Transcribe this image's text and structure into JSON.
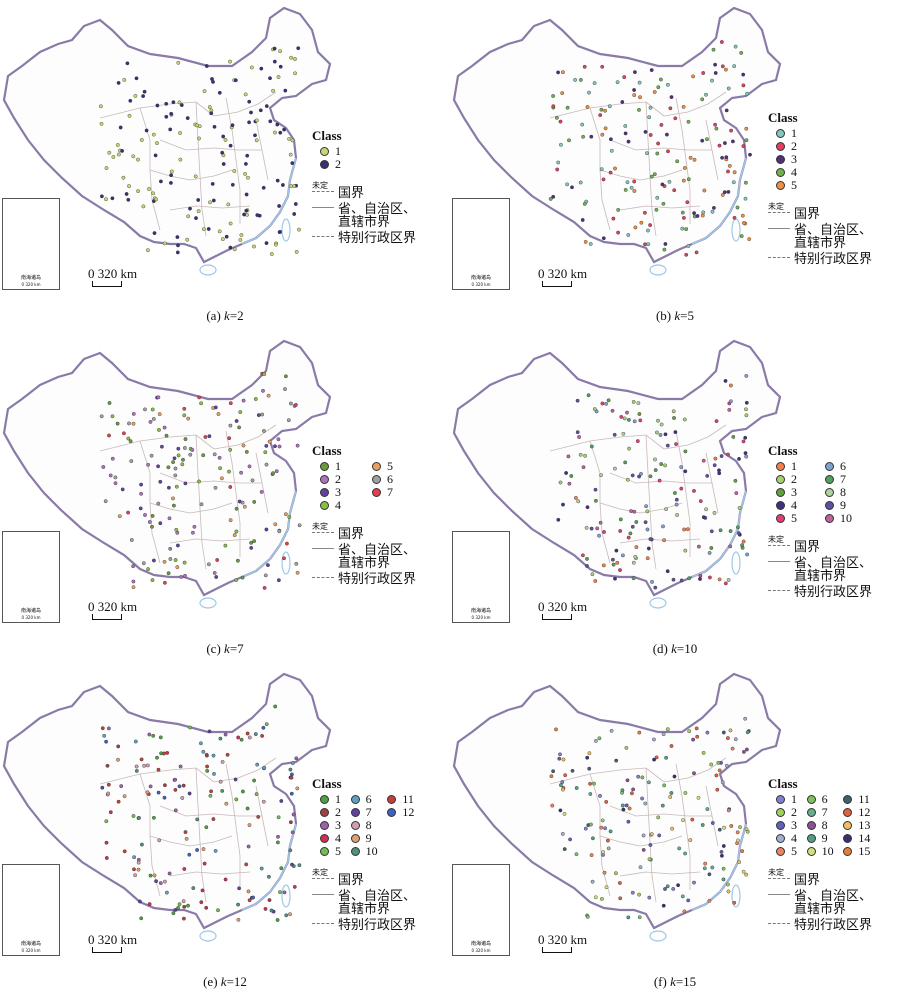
{
  "legend": {
    "class_title": "Class",
    "boundaries": {
      "undefined_mark": "未定",
      "national": "国界",
      "provincial_line1": "省、自治区、",
      "provincial_line2": "直辖市界",
      "sar": "特别行政区界"
    }
  },
  "scale": {
    "label": "0 320 km"
  },
  "inset": {
    "label": "南海诸岛",
    "scale": "0 320 km"
  },
  "panels": [
    {
      "caption_prefix": "(a) ",
      "caption_k": "k",
      "caption_suffix": "=2",
      "classes": [
        "1",
        "2"
      ],
      "colors": [
        "#c8d870",
        "#3a2f7a"
      ]
    },
    {
      "caption_prefix": "(b) ",
      "caption_k": "k",
      "caption_suffix": "=5",
      "classes": [
        "1",
        "2",
        "3",
        "4",
        "5"
      ],
      "colors": [
        "#80c8c0",
        "#e04060",
        "#50307a",
        "#70b050",
        "#f09040"
      ]
    },
    {
      "caption_prefix": "(c) ",
      "caption_k": "k",
      "caption_suffix": "=7",
      "classes": [
        "1",
        "2",
        "3",
        "4",
        "5",
        "6",
        "7"
      ],
      "colors": [
        "#6a9a40",
        "#b070c0",
        "#6040a0",
        "#88c040",
        "#e8a060",
        "#a0a0a0",
        "#e04050"
      ]
    },
    {
      "caption_prefix": "(d) ",
      "caption_k": "k",
      "caption_suffix": "=10",
      "classes": [
        "1",
        "2",
        "3",
        "4",
        "5",
        "6",
        "7",
        "8",
        "9",
        "10"
      ],
      "colors": [
        "#f08050",
        "#a8d070",
        "#60a040",
        "#403080",
        "#e04070",
        "#80a0d0",
        "#50a060",
        "#b0d0a0",
        "#6050a0",
        "#c060a0"
      ]
    },
    {
      "caption_prefix": "(e) ",
      "caption_k": "k",
      "caption_suffix": "=12",
      "classes": [
        "1",
        "2",
        "3",
        "4",
        "5",
        "6",
        "7",
        "8",
        "9",
        "10",
        "11",
        "12"
      ],
      "colors": [
        "#50a040",
        "#a04040",
        "#a060b0",
        "#d03050",
        "#70c050",
        "#60a0c0",
        "#6040a0",
        "#d0a0b0",
        "#e0a070",
        "#509080",
        "#c04040",
        "#4060c0"
      ]
    },
    {
      "caption_prefix": "(f) ",
      "caption_k": "k",
      "caption_suffix": "=15",
      "classes": [
        "1",
        "2",
        "3",
        "4",
        "5",
        "6",
        "7",
        "8",
        "9",
        "10",
        "11",
        "12",
        "13",
        "14",
        "15"
      ],
      "colors": [
        "#8080d0",
        "#a0d060",
        "#6060c0",
        "#a0b0d0",
        "#f08060",
        "#80c060",
        "#60b090",
        "#8a5090",
        "#50a080",
        "#d0e080",
        "#406070",
        "#e06040",
        "#f0c060",
        "#3a3070",
        "#e08040"
      ]
    }
  ]
}
